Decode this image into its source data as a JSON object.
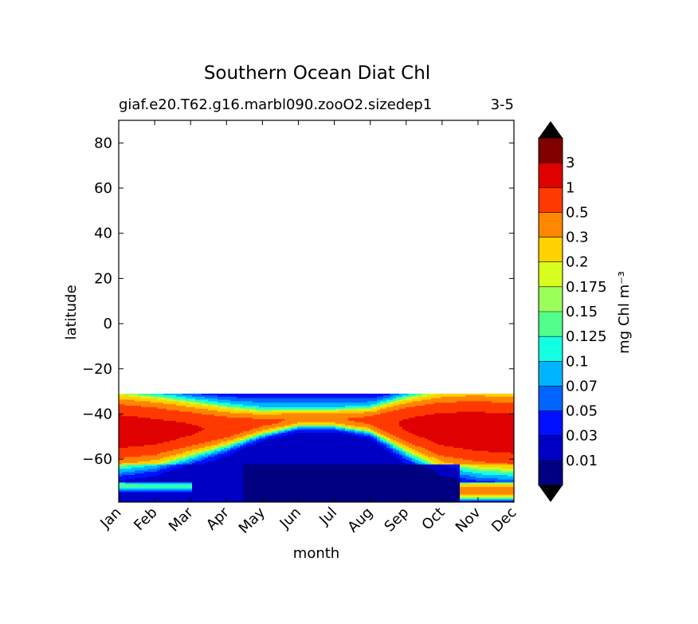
{
  "chart_data": {
    "type": "contour",
    "title": "Southern Ocean Diat Chl",
    "subtitle_left": "giaf.e20.T62.g16.marbl090.zooO2.sizedep1",
    "subtitle_right": "3-5",
    "xlabel": "month",
    "ylabel": "latitude",
    "x_ticks": [
      "Jan",
      "Feb",
      "Mar",
      "Apr",
      "May",
      "Jun",
      "Jul",
      "Aug",
      "Sep",
      "Oct",
      "Nov",
      "Dec"
    ],
    "ylim": [
      -79,
      90
    ],
    "y_ticks": [
      80,
      60,
      40,
      20,
      0,
      -20,
      -40,
      -60
    ],
    "y_tick_labels": [
      "80",
      "60",
      "40",
      "20",
      "0",
      "−20",
      "−40",
      "−60"
    ],
    "data_lat_range": [
      -79,
      -31
    ],
    "colorbar": {
      "label": "mg Chl m⁻³",
      "levels": [
        0.01,
        0.03,
        0.05,
        0.07,
        0.1,
        0.125,
        0.15,
        0.175,
        0.2,
        0.3,
        0.5,
        1,
        3
      ],
      "tick_labels": [
        "0.01",
        "0.03",
        "0.05",
        "0.07",
        "0.1",
        "0.125",
        "0.15",
        "0.175",
        "0.2",
        "0.3",
        "0.5",
        "1",
        "3"
      ],
      "colors": [
        "#000080",
        "#0000c4",
        "#0010ff",
        "#0064ff",
        "#00b4ff",
        "#13ffe3",
        "#52ff8b",
        "#9bff5a",
        "#d8ff1f",
        "#ffd200",
        "#ff8600",
        "#ff3a00",
        "#df0000",
        "#800000"
      ],
      "extend": "both"
    },
    "bands": [
      {
        "month": "Jan",
        "bloom_center_lat": -48,
        "bloom_halfwidth": 11
      },
      {
        "month": "Feb",
        "bloom_center_lat": -48,
        "bloom_halfwidth": 10
      },
      {
        "month": "Mar",
        "bloom_center_lat": -47,
        "bloom_halfwidth": 8
      },
      {
        "month": "Apr",
        "bloom_center_lat": -46,
        "bloom_halfwidth": 6
      },
      {
        "month": "May",
        "bloom_center_lat": -44,
        "bloom_halfwidth": 4
      },
      {
        "month": "Jun",
        "bloom_center_lat": -42,
        "bloom_halfwidth": 3
      },
      {
        "month": "Jul",
        "bloom_center_lat": -42,
        "bloom_halfwidth": 3
      },
      {
        "month": "Aug",
        "bloom_center_lat": -43,
        "bloom_halfwidth": 4
      },
      {
        "month": "Sep",
        "bloom_center_lat": -45,
        "bloom_halfwidth": 8
      },
      {
        "month": "Oct",
        "bloom_center_lat": -47,
        "bloom_halfwidth": 11
      },
      {
        "month": "Nov",
        "bloom_center_lat": -48,
        "bloom_halfwidth": 12
      },
      {
        "month": "Dec",
        "bloom_center_lat": -49,
        "bloom_halfwidth": 12
      }
    ]
  }
}
